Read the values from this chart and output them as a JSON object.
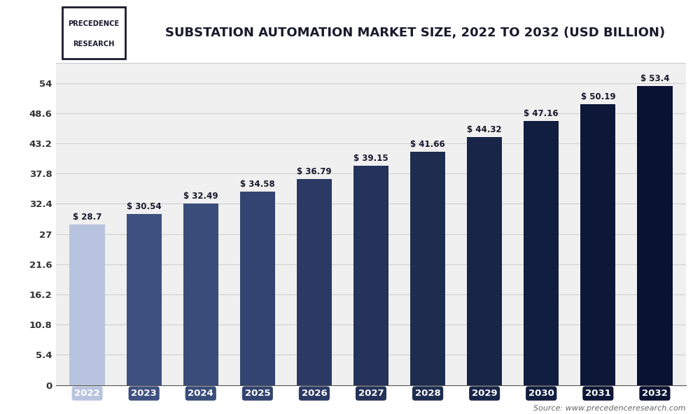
{
  "title": "SUBSTATION AUTOMATION MARKET SIZE, 2022 TO 2032 (USD BILLION)",
  "years": [
    2022,
    2023,
    2024,
    2025,
    2026,
    2027,
    2028,
    2029,
    2030,
    2031,
    2032
  ],
  "values": [
    28.7,
    30.54,
    32.49,
    34.58,
    36.79,
    39.15,
    41.66,
    44.32,
    47.16,
    50.19,
    53.4
  ],
  "labels": [
    "$ 28.7",
    "$ 30.54",
    "$ 32.49",
    "$ 34.58",
    "$ 36.79",
    "$ 39.15",
    "$ 41.66",
    "$ 44.32",
    "$ 47.16",
    "$ 50.19",
    "$ 53.4"
  ],
  "bar_colors": [
    "#b8c4df",
    "#3d5080",
    "#3a4d7a",
    "#334470",
    "#2b3a65",
    "#25335a",
    "#1e2c50",
    "#182548",
    "#121e40",
    "#0d1838",
    "#091232"
  ],
  "ytick_labels": [
    "0",
    "5.4",
    "10.8",
    "16.2",
    "21.6",
    "27",
    "32.4",
    "37.8",
    "43.2",
    "48.6",
    "54"
  ],
  "ytick_values": [
    0,
    5.4,
    10.8,
    16.2,
    21.6,
    27,
    32.4,
    37.8,
    43.2,
    48.6,
    54
  ],
  "ylim": [
    0,
    57.5
  ],
  "background_color": "#ffffff",
  "plot_bg_color": "#f0f0f0",
  "grid_color": "#d0d0d0",
  "title_color": "#1a1a2e",
  "bar_label_color": "#1a1a2e",
  "source_text": "Source: www.precedenceresearch.com",
  "logo_line1": "PRECEDENCE",
  "logo_line2": "RESEARCH",
  "header_bg": "#ffffff",
  "logo_border_color": "#1a1a2e"
}
